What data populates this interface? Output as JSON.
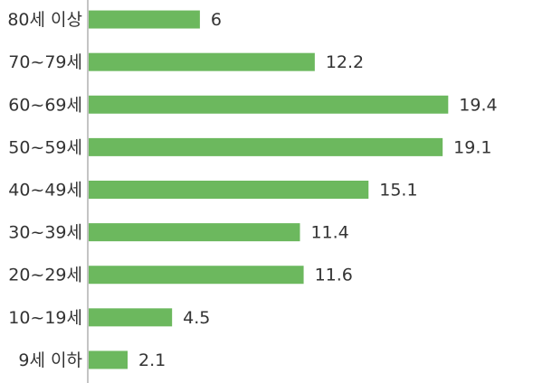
{
  "chart_data": {
    "type": "bar",
    "orientation": "horizontal",
    "categories": [
      "80세 이상",
      "70~79세",
      "60~69세",
      "50~59세",
      "40~49세",
      "30~39세",
      "20~29세",
      "10~19세",
      "9세 이하"
    ],
    "values": [
      6,
      12.2,
      19.4,
      19.1,
      15.1,
      11.4,
      11.6,
      4.5,
      2.1
    ],
    "color": "#6cb85e",
    "xlim": [
      0,
      25
    ]
  }
}
